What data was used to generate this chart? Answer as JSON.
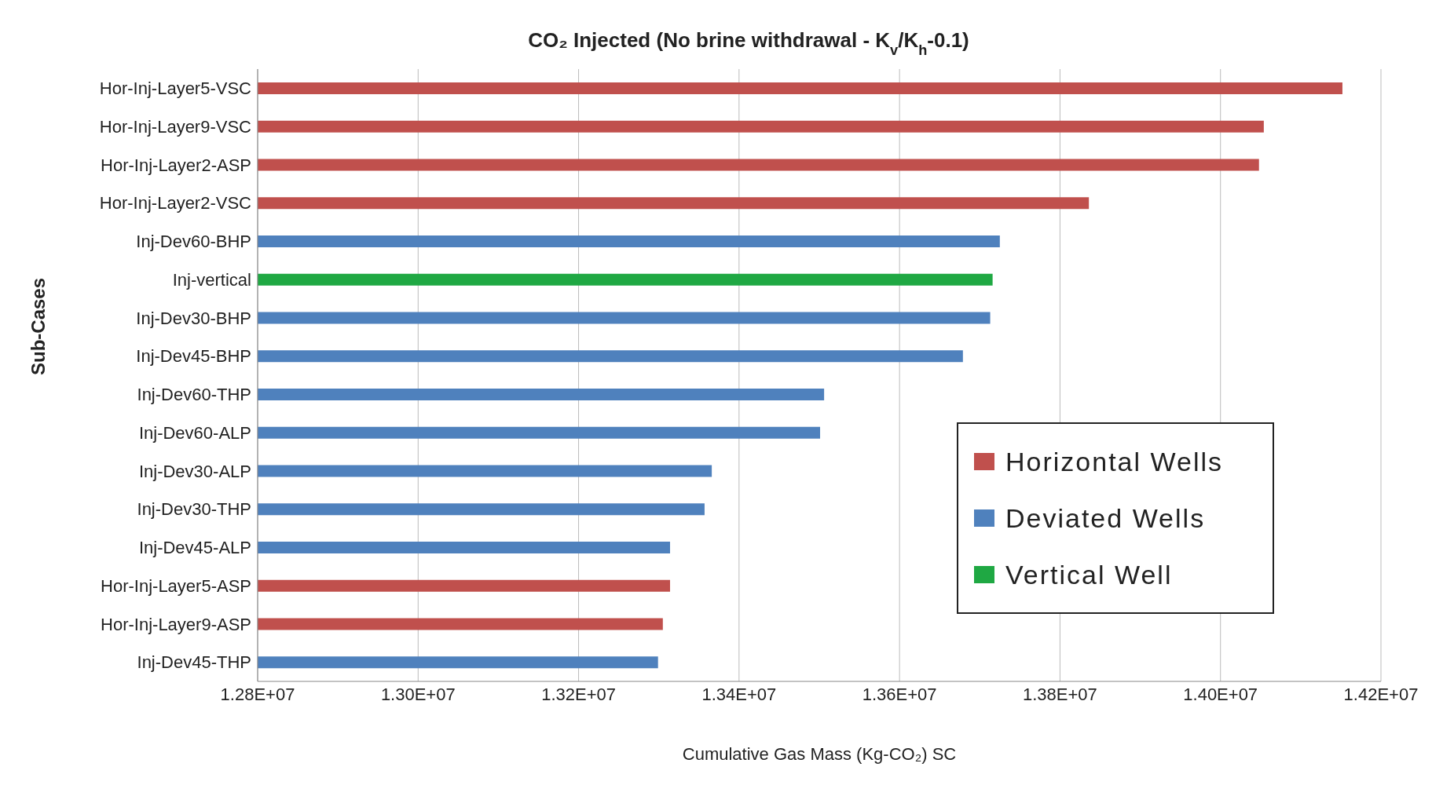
{
  "chart_data": {
    "type": "bar",
    "orientation": "horizontal",
    "stacked": true,
    "title": "CO₂ Injected (No brine withdrawal - K$_{v}$/K$_{h}$-0.1)",
    "xlabel": "Cumulative Gas Mass (Kg-CO₂)  SC",
    "ylabel": "Sub-Cases",
    "categories": [
      "Hor-Inj-Layer5-VSC",
      "Hor-Inj-Layer9-VSC",
      "Hor-Inj-Layer2-ASP",
      "Hor-Inj-Layer2-VSC",
      "Inj-Dev60-BHP",
      "Inj-vertical",
      "Inj-Dev30-BHP",
      "Inj-Dev45-BHP",
      "Inj-Dev60-THP",
      "Inj-Dev60-ALP",
      "Inj-Dev30-ALP",
      "Inj-Dev30-THP",
      "Inj-Dev45-ALP",
      "Hor-Inj-Layer5-ASP",
      "Hor-Inj-Layer9-ASP",
      "Inj-Dev45-THP"
    ],
    "series": [
      {
        "name": "Horizontal Wells",
        "color": "#c0504d",
        "values": [
          14152000,
          14054000,
          14048000,
          13836000,
          null,
          null,
          null,
          null,
          null,
          null,
          null,
          null,
          null,
          13314000,
          13305000,
          null
        ]
      },
      {
        "name": "Deviated Wells",
        "color": "#4f81bd",
        "values": [
          null,
          null,
          null,
          null,
          13725000,
          null,
          13713000,
          13679000,
          13506000,
          13501000,
          13366000,
          13357000,
          13314000,
          null,
          null,
          13299000
        ]
      },
      {
        "name": "Vertical Well",
        "color": "#1fa843",
        "values": [
          null,
          null,
          null,
          null,
          null,
          13716000,
          null,
          null,
          null,
          null,
          null,
          null,
          null,
          null,
          null,
          null
        ]
      }
    ],
    "xlim": [
      12800000,
      14200000
    ],
    "xticks": [
      {
        "value": 12800000,
        "label": "1.28E+07"
      },
      {
        "value": 13000000,
        "label": "1.30E+07"
      },
      {
        "value": 13200000,
        "label": "1.32E+07"
      },
      {
        "value": 13400000,
        "label": "1.34E+07"
      },
      {
        "value": 13600000,
        "label": "1.36E+07"
      },
      {
        "value": 13800000,
        "label": "1.38E+07"
      },
      {
        "value": 14000000,
        "label": "1.40E+07"
      },
      {
        "value": 14200000,
        "label": "1.42E+07"
      }
    ],
    "grid": "x",
    "legend": "bottom right"
  }
}
